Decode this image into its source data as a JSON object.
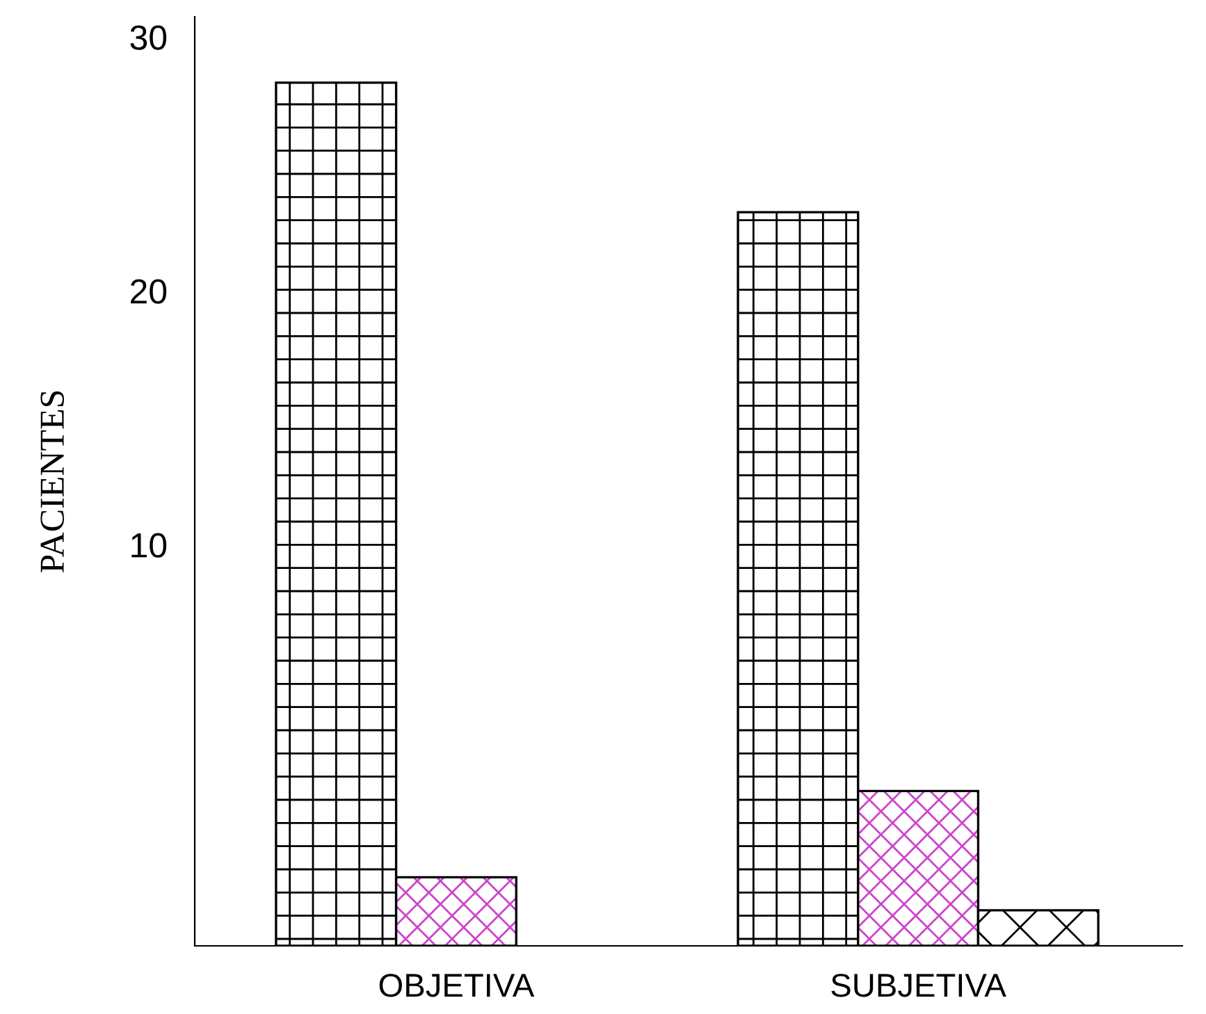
{
  "chart_data": {
    "type": "bar",
    "ylabel": "PACIENTES",
    "categories": [
      "OBJETIVA",
      "SUBJETIVA"
    ],
    "series": [
      {
        "color": "#000000",
        "values": [
          34.0,
          28.9
        ],
        "base": [
          -5.8,
          -5.8
        ]
      },
      {
        "color": "#000000",
        "values": [
          2.7,
          6.1
        ],
        "base": [
          -5.8,
          -5.8
        ]
      },
      {
        "color": "#000000",
        "values": [
          null,
          1.4
        ],
        "base": [
          null,
          -5.8
        ]
      }
    ],
    "ylim": [
      -5.8,
      30.8
    ],
    "yticks": [
      10,
      20,
      30
    ],
    "grid": false,
    "legend": false
  }
}
